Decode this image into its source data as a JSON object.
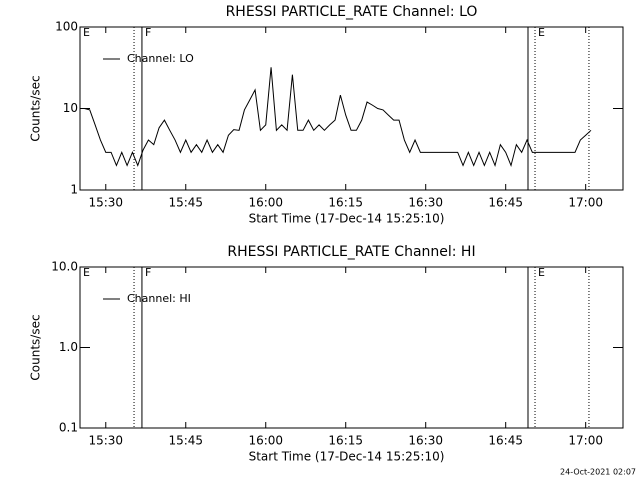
{
  "chart_data": [
    {
      "type": "line",
      "title": "RHESSI PARTICLE_RATE Channel: LO",
      "xlabel": "Start Time (17-Dec-14 15:25:10)",
      "ylabel": "Counts/sec",
      "xlim": [
        "15:25:10",
        "17:07:00"
      ],
      "xticks": [
        "15:30",
        "15:45",
        "16:00",
        "16:15",
        "16:30",
        "16:45",
        "17:00"
      ],
      "ylim": [
        1,
        100
      ],
      "yticks": [
        1,
        10,
        100
      ],
      "log_scale": true,
      "legend": "upper left",
      "markers": [
        {
          "x": "15:25:10",
          "style": "solid",
          "label": "E"
        },
        {
          "x": "15:35:18",
          "style": "dotted",
          "label": null
        },
        {
          "x": "15:36:47",
          "style": "solid",
          "label": "F"
        },
        {
          "x": "16:49:11",
          "style": "solid",
          "label": null
        },
        {
          "x": "16:50:30",
          "style": "dotted",
          "label": "E"
        },
        {
          "x": "17:00:37",
          "style": "dotted",
          "label": null
        }
      ],
      "series": [
        {
          "name": "Channel: LO",
          "color": "#000000",
          "x": [
            "15:26",
            "15:27",
            "15:28",
            "15:29",
            "15:30",
            "15:31",
            "15:32",
            "15:33",
            "15:34",
            "15:35",
            "15:36",
            "15:37",
            "15:38",
            "15:39",
            "15:40",
            "15:41",
            "15:42",
            "15:43",
            "15:44",
            "15:45",
            "15:46",
            "15:47",
            "15:48",
            "15:49",
            "15:50",
            "15:51",
            "15:52",
            "15:53",
            "15:54",
            "15:55",
            "15:56",
            "15:57",
            "15:58",
            "15:59",
            "16:00",
            "16:01",
            "16:02",
            "16:03",
            "16:04",
            "16:05",
            "16:06",
            "16:07",
            "16:08",
            "16:09",
            "16:10",
            "16:11",
            "16:12",
            "16:13",
            "16:14",
            "16:15",
            "16:16",
            "16:17",
            "16:18",
            "16:19",
            "16:20",
            "16:21",
            "16:22",
            "16:23",
            "16:24",
            "16:25",
            "16:26",
            "16:27",
            "16:28",
            "16:29",
            "16:30",
            "16:31",
            "16:32",
            "16:33",
            "16:34",
            "16:35",
            "16:36",
            "16:37",
            "16:38",
            "16:39",
            "16:40",
            "16:41",
            "16:42",
            "16:43",
            "16:44",
            "16:45",
            "16:46",
            "16:47",
            "16:48",
            "16:49",
            "16:50",
            "16:51",
            "16:52",
            "16:53",
            "16:54",
            "16:55",
            "16:56",
            "16:57",
            "16:58",
            "16:59",
            "17:00",
            "17:01"
          ],
          "values": [
            10,
            9.6,
            6.3,
            4.1,
            2.9,
            2.9,
            2.0,
            2.9,
            2.0,
            2.9,
            2.0,
            3.1,
            4.1,
            3.6,
            5.8,
            7.2,
            5.4,
            4.1,
            2.9,
            4.1,
            2.9,
            3.6,
            2.9,
            4.1,
            2.9,
            3.6,
            2.9,
            4.7,
            5.5,
            5.4,
            9.6,
            12.7,
            16.9,
            5.4,
            6.3,
            32,
            5.4,
            6.3,
            5.4,
            26,
            5.4,
            5.4,
            7.2,
            5.4,
            6.3,
            5.4,
            6.3,
            7.2,
            14.6,
            8.3,
            5.4,
            5.4,
            7.2,
            12,
            11,
            10,
            9.6,
            8.3,
            7.2,
            7.2,
            4.1,
            2.9,
            4.1,
            2.9,
            2.9,
            2.9,
            2.9,
            2.9,
            2.9,
            2.9,
            2.9,
            2.0,
            2.9,
            2.0,
            2.9,
            2.0,
            2.9,
            2.0,
            3.6,
            2.9,
            2.0,
            3.6,
            2.9,
            4.1,
            2.9,
            2.9,
            2.9,
            2.9,
            2.9,
            2.9,
            2.9,
            2.9,
            2.9,
            4.1,
            4.7,
            5.4
          ]
        }
      ]
    },
    {
      "type": "line",
      "title": "RHESSI PARTICLE_RATE Channel: HI",
      "xlabel": "Start Time (17-Dec-14 15:25:10)",
      "ylabel": "Counts/sec",
      "xlim": [
        "15:25:10",
        "17:07:00"
      ],
      "xticks": [
        "15:30",
        "15:45",
        "16:00",
        "16:15",
        "16:30",
        "16:45",
        "17:00"
      ],
      "ylim": [
        0.1,
        10
      ],
      "yticks": [
        0.1,
        {
          "value": 1,
          "label": "1.0"
        },
        {
          "value": 10,
          "label": "10.0"
        }
      ],
      "log_scale": true,
      "legend": "upper left",
      "markers": [
        {
          "x": "15:25:10",
          "style": "solid",
          "label": "E"
        },
        {
          "x": "15:35:18",
          "style": "dotted",
          "label": null
        },
        {
          "x": "15:36:47",
          "style": "solid",
          "label": "F"
        },
        {
          "x": "16:49:11",
          "style": "solid",
          "label": null
        },
        {
          "x": "16:50:30",
          "style": "dotted",
          "label": "E"
        },
        {
          "x": "17:00:37",
          "style": "dotted",
          "label": null
        }
      ],
      "series": [
        {
          "name": "Channel: HI",
          "color": "#000000",
          "x": [],
          "values": []
        }
      ]
    }
  ],
  "footer": "24-Oct-2021 02:07"
}
